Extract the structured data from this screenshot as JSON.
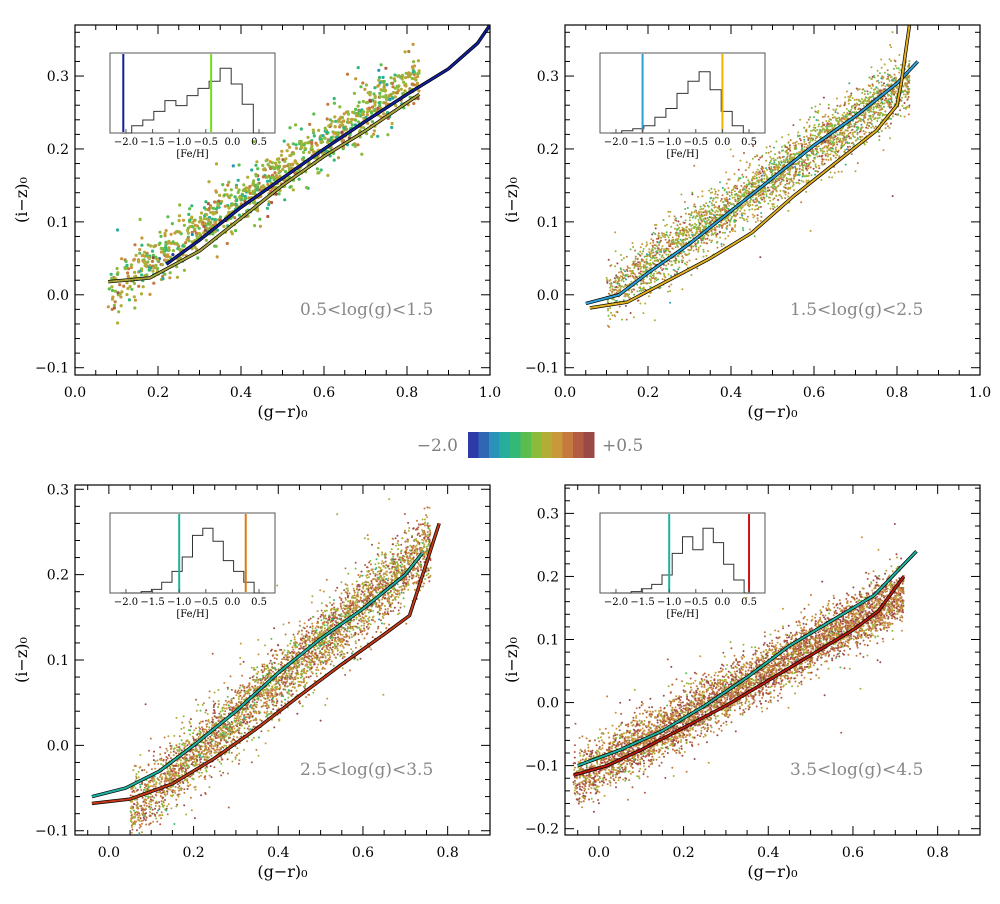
{
  "colorbar": {
    "min_label": "−2.0",
    "max_label": "+0.5",
    "colors": [
      "#2e3aa8",
      "#2f67b5",
      "#2a91b8",
      "#27ad9d",
      "#33b877",
      "#5cbd4f",
      "#8cbb3c",
      "#b2ad35",
      "#c8983a",
      "#c47a3f",
      "#b35c44",
      "#9b4848"
    ]
  },
  "chart_data": [
    {
      "type": "scatter",
      "xlabel": "(g−r)₀",
      "ylabel": "(i−z)₀",
      "xlim": [
        0.0,
        1.0
      ],
      "ylim": [
        -0.11,
        0.37
      ],
      "xticks": [
        "0.0",
        "0.2",
        "0.4",
        "0.6",
        "0.8",
        "1.0"
      ],
      "xtick_values": [
        0.0,
        0.2,
        0.4,
        0.6,
        0.8,
        1.0
      ],
      "yticks": [
        "−0.1",
        "0.0",
        "0.1",
        "0.2",
        "0.3"
      ],
      "ytick_values": [
        -0.1,
        0.0,
        0.1,
        0.2,
        0.3
      ],
      "annotation": "0.5<log(g)<1.5",
      "scatter": {
        "x_range": [
          0.08,
          0.83
        ],
        "slope": 0.4,
        "intercept": -0.03,
        "spread": 0.018,
        "count": 1100,
        "feh_mean": -0.5,
        "feh_sd": 0.35
      },
      "series": [
        {
          "color": "#101f9a",
          "x": [
            0.22,
            0.3,
            0.4,
            0.5,
            0.6,
            0.7,
            0.8,
            0.9,
            0.97,
            1.0
          ],
          "y": [
            0.042,
            0.075,
            0.12,
            0.16,
            0.2,
            0.238,
            0.275,
            0.31,
            0.345,
            0.37
          ]
        },
        {
          "color": "#a8a23a",
          "x": [
            0.08,
            0.18,
            0.3,
            0.4,
            0.5,
            0.6,
            0.7,
            0.83
          ],
          "y": [
            0.018,
            0.023,
            0.06,
            0.105,
            0.15,
            0.19,
            0.225,
            0.275
          ]
        }
      ],
      "inset": {
        "xlabel": "[Fe/H]",
        "xticks": [
          "−2.0",
          "−1.5",
          "−1.0",
          "−0.5",
          "0.0",
          "0.5"
        ],
        "xtick_values": [
          -2.0,
          -1.5,
          -1.0,
          -0.5,
          0.0,
          0.5
        ],
        "xlim": [
          -2.3,
          0.8
        ],
        "hist": [
          0,
          0.1,
          0.18,
          0.3,
          0.45,
          0.38,
          0.52,
          0.62,
          0.72,
          0.9,
          0.68,
          0.4,
          0
        ],
        "markers": [
          {
            "value": -2.05,
            "color": "#101f9a"
          },
          {
            "value": -0.4,
            "color": "#6fe01c"
          }
        ]
      }
    },
    {
      "type": "scatter",
      "xlabel": "(g−r)₀",
      "ylabel": "(i−z)₀",
      "xlim": [
        0.0,
        1.0
      ],
      "ylim": [
        -0.11,
        0.37
      ],
      "xticks": [
        "0.0",
        "0.2",
        "0.4",
        "0.6",
        "0.8",
        "1.0"
      ],
      "xtick_values": [
        0.0,
        0.2,
        0.4,
        0.6,
        0.8,
        1.0
      ],
      "yticks": [
        "−0.1",
        "0.0",
        "0.1",
        "0.2",
        "0.3"
      ],
      "ytick_values": [
        -0.1,
        0.0,
        0.1,
        0.2,
        0.3
      ],
      "annotation": "1.5<log(g)<2.5",
      "scatter": {
        "x_range": [
          0.1,
          0.83
        ],
        "slope": 0.4,
        "intercept": -0.04,
        "spread": 0.02,
        "count": 3200,
        "feh_mean": -0.35,
        "feh_sd": 0.38
      },
      "series": [
        {
          "color": "#2aa0d8",
          "x": [
            0.05,
            0.13,
            0.2,
            0.3,
            0.4,
            0.5,
            0.6,
            0.7,
            0.8,
            0.85
          ],
          "y": [
            -0.012,
            0.0,
            0.03,
            0.07,
            0.115,
            0.16,
            0.205,
            0.245,
            0.29,
            0.32
          ]
        },
        {
          "color": "#e0b020",
          "x": [
            0.06,
            0.15,
            0.25,
            0.35,
            0.45,
            0.55,
            0.65,
            0.75,
            0.8,
            0.81,
            0.82,
            0.83
          ],
          "y": [
            -0.018,
            -0.01,
            0.02,
            0.05,
            0.085,
            0.135,
            0.18,
            0.225,
            0.26,
            0.29,
            0.33,
            0.37
          ]
        }
      ],
      "inset": {
        "xlabel": "[Fe/H]",
        "xticks": [
          "−2.0",
          "−1.5",
          "−1.0",
          "−0.5",
          "0.0",
          "0.5"
        ],
        "xtick_values": [
          -2.0,
          -1.5,
          -1.0,
          -0.5,
          0.0,
          0.5
        ],
        "xlim": [
          -2.3,
          0.8
        ],
        "hist": [
          0,
          0.03,
          0.06,
          0.1,
          0.22,
          0.34,
          0.55,
          0.72,
          0.85,
          0.6,
          0.3,
          0.1,
          0
        ],
        "markers": [
          {
            "value": -1.5,
            "color": "#2aa0d8"
          },
          {
            "value": 0.0,
            "color": "#f0b400"
          }
        ]
      }
    },
    {
      "type": "scatter",
      "xlabel": "(g−r)₀",
      "ylabel": "(i−z)₀",
      "xlim": [
        -0.08,
        0.9
      ],
      "ylim": [
        -0.105,
        0.305
      ],
      "xticks": [
        "0.0",
        "0.2",
        "0.4",
        "0.6",
        "0.8"
      ],
      "xtick_values": [
        0.0,
        0.2,
        0.4,
        0.6,
        0.8
      ],
      "yticks": [
        "−0.1",
        "0.0",
        "0.1",
        "0.2",
        "0.3"
      ],
      "ytick_values": [
        -0.1,
        0.0,
        0.1,
        0.2,
        0.3
      ],
      "annotation": "2.5<log(g)<3.5",
      "scatter": {
        "x_range": [
          0.05,
          0.76
        ],
        "slope": 0.44,
        "intercept": -0.1,
        "spread": 0.02,
        "count": 4200,
        "feh_mean": -0.15,
        "feh_sd": 0.4
      },
      "series": [
        {
          "color": "#1fb0a0",
          "x": [
            -0.04,
            0.04,
            0.12,
            0.2,
            0.3,
            0.4,
            0.5,
            0.6,
            0.7,
            0.74
          ],
          "y": [
            -0.06,
            -0.05,
            -0.03,
            0.0,
            0.04,
            0.085,
            0.125,
            0.16,
            0.2,
            0.225
          ]
        },
        {
          "color": "#c03818",
          "x": [
            -0.04,
            0.05,
            0.15,
            0.25,
            0.35,
            0.45,
            0.55,
            0.65,
            0.71,
            0.78
          ],
          "y": [
            -0.068,
            -0.063,
            -0.045,
            -0.015,
            0.02,
            0.058,
            0.095,
            0.13,
            0.152,
            0.26
          ]
        }
      ],
      "inset": {
        "xlabel": "[Fe/H]",
        "xticks": [
          "−2.0",
          "−1.5",
          "−1.0",
          "−0.5",
          "0.0",
          "0.5"
        ],
        "xtick_values": [
          -2.0,
          -1.5,
          -1.0,
          -0.5,
          0.0,
          0.5
        ],
        "xlim": [
          -2.3,
          0.8
        ],
        "hist": [
          0,
          0,
          0.02,
          0.05,
          0.15,
          0.3,
          0.5,
          0.8,
          0.9,
          0.72,
          0.45,
          0.3,
          0.15,
          0
        ],
        "markers": [
          {
            "value": -1.0,
            "color": "#1fb0a0"
          },
          {
            "value": 0.25,
            "color": "#e07a10"
          }
        ]
      }
    },
    {
      "type": "scatter",
      "xlabel": "(g−r)₀",
      "ylabel": "(i−z)₀",
      "xlim": [
        -0.08,
        0.9
      ],
      "ylim": [
        -0.21,
        0.345
      ],
      "xticks": [
        "0.0",
        "0.2",
        "0.4",
        "0.6",
        "0.8"
      ],
      "xtick_values": [
        0.0,
        0.2,
        0.4,
        0.6,
        0.8
      ],
      "yticks": [
        "−0.2",
        "−0.1",
        "0.0",
        "0.1",
        "0.2",
        "0.3"
      ],
      "ytick_values": [
        -0.2,
        -0.1,
        0.0,
        0.1,
        0.2,
        0.3
      ],
      "annotation": "3.5<log(g)<4.5",
      "scatter": {
        "x_range": [
          -0.06,
          0.72
        ],
        "slope": 0.38,
        "intercept": -0.1,
        "spread": 0.022,
        "count": 5000,
        "feh_mean": 0.0,
        "feh_sd": 0.35
      },
      "series": [
        {
          "color": "#1fb0a0",
          "x": [
            -0.05,
            0.05,
            0.15,
            0.25,
            0.35,
            0.45,
            0.55,
            0.65,
            0.75
          ],
          "y": [
            -0.1,
            -0.075,
            -0.045,
            -0.005,
            0.04,
            0.09,
            0.13,
            0.17,
            0.24
          ]
        },
        {
          "color": "#b81a10",
          "x": [
            -0.06,
            0.02,
            0.1,
            0.2,
            0.3,
            0.4,
            0.5,
            0.6,
            0.66,
            0.72
          ],
          "y": [
            -0.115,
            -0.1,
            -0.075,
            -0.04,
            -0.005,
            0.035,
            0.075,
            0.115,
            0.145,
            0.2
          ]
        }
      ],
      "inset": {
        "xlabel": "[Fe/H]",
        "xticks": [
          "−2.0",
          "−1.5",
          "−1.0",
          "−0.5",
          "0.0",
          "0.5"
        ],
        "xtick_values": [
          -2.0,
          -1.5,
          -1.0,
          -0.5,
          0.0,
          0.5
        ],
        "xlim": [
          -2.3,
          0.8
        ],
        "hist": [
          0,
          0,
          0.02,
          0.06,
          0.12,
          0.25,
          0.55,
          0.78,
          0.6,
          0.9,
          0.7,
          0.4,
          0.18,
          0
        ],
        "markers": [
          {
            "value": -1.0,
            "color": "#1fb0a0"
          },
          {
            "value": 0.5,
            "color": "#d01010"
          }
        ]
      }
    }
  ]
}
